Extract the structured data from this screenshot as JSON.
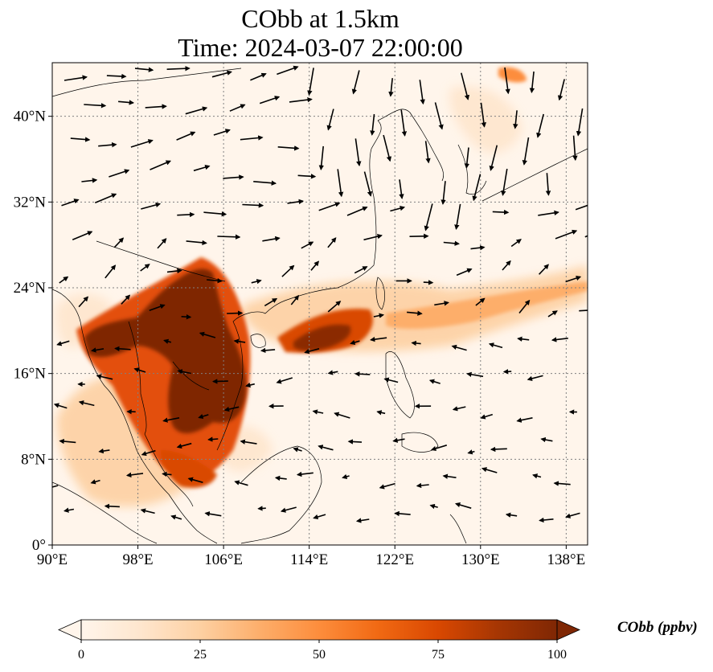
{
  "title": {
    "line1": "CObb at 1.5km",
    "line2": "Time: 2024-03-07 22:00:00"
  },
  "map": {
    "extent": {
      "lon_min": 90,
      "lon_max": 140,
      "lat_min": 0,
      "lat_max": 45
    },
    "lon_ticks": [
      {
        "value": 90,
        "label": "90°E"
      },
      {
        "value": 98,
        "label": "98°E"
      },
      {
        "value": 106,
        "label": "106°E"
      },
      {
        "value": 114,
        "label": "114°E"
      },
      {
        "value": 122,
        "label": "122°E"
      },
      {
        "value": 130,
        "label": "130°E"
      },
      {
        "value": 138,
        "label": "138°E"
      }
    ],
    "lat_ticks": [
      {
        "value": 0,
        "label": "0°"
      },
      {
        "value": 8,
        "label": "8°N"
      },
      {
        "value": 16,
        "label": "16°N"
      },
      {
        "value": 24,
        "label": "24°N"
      },
      {
        "value": 32,
        "label": "32°N"
      },
      {
        "value": 40,
        "label": "40°N"
      }
    ],
    "gridlines": true,
    "colors": {
      "background": "#fff5eb",
      "coast": "#000000",
      "grid": "#808080",
      "arrow": "#000000"
    }
  },
  "colorbar": {
    "label": "CObb (ppbv)",
    "min": 0,
    "max": 100,
    "extend": "both",
    "ticks": [
      {
        "value": 0,
        "label": "0"
      },
      {
        "value": 25,
        "label": "25"
      },
      {
        "value": 50,
        "label": "50"
      },
      {
        "value": 75,
        "label": "75"
      },
      {
        "value": 100,
        "label": "100"
      }
    ],
    "colors": [
      "#fff5eb",
      "#fee6ce",
      "#fdd0a2",
      "#fdae6b",
      "#fd8d3c",
      "#f16913",
      "#d94801",
      "#a63603",
      "#7f2704"
    ]
  }
}
